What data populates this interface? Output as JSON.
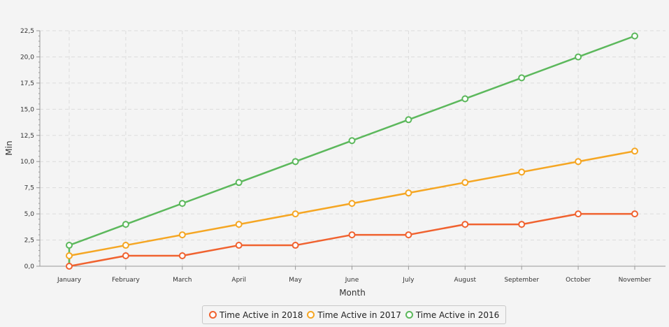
{
  "chart_data": {
    "type": "line",
    "xlabel": "Month",
    "ylabel": "Min",
    "categories": [
      "January",
      "February",
      "March",
      "April",
      "May",
      "June",
      "July",
      "August",
      "September",
      "October",
      "November"
    ],
    "ylim": [
      0,
      22.5
    ],
    "y_ticks": [
      "0,0",
      "2,5",
      "5,0",
      "7,5",
      "10,0",
      "12,5",
      "15,0",
      "17,5",
      "20,0",
      "22,5"
    ],
    "grid": true,
    "legend_position": "bottom",
    "series": [
      {
        "name": "Time Active in 2018",
        "color": "#f0622f",
        "values": [
          0,
          1,
          1,
          2,
          2,
          3,
          3,
          4,
          4,
          5,
          5
        ]
      },
      {
        "name": "Time Active in 2017",
        "color": "#f5a623",
        "values": [
          1,
          2,
          3,
          4,
          5,
          6,
          7,
          8,
          9,
          10,
          11
        ]
      },
      {
        "name": "Time Active in 2016",
        "color": "#5cb85c",
        "values": [
          2,
          4,
          6,
          8,
          10,
          12,
          14,
          16,
          18,
          20,
          22
        ]
      }
    ]
  }
}
